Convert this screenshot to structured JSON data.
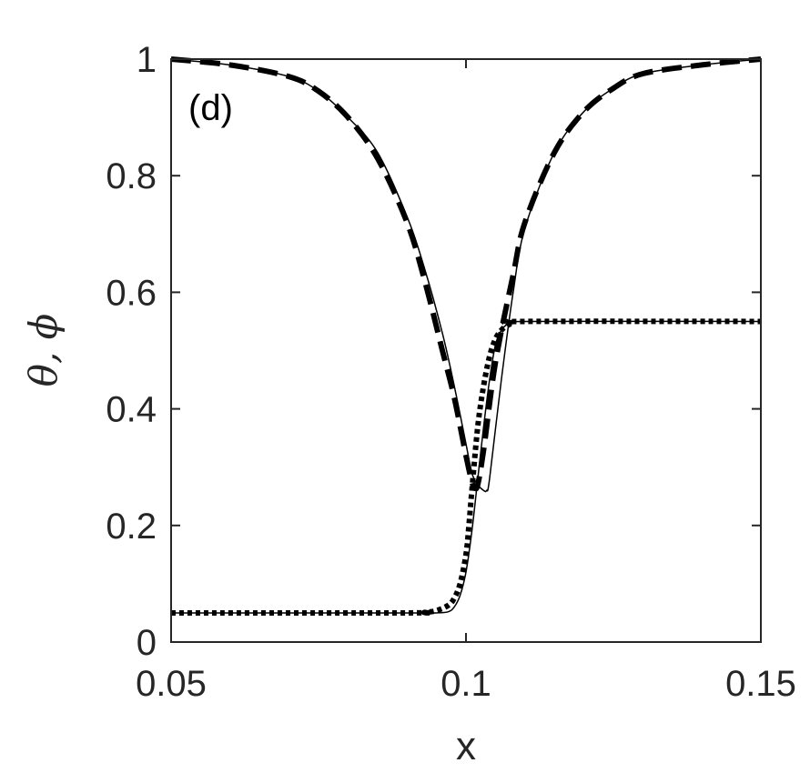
{
  "chart_data": {
    "type": "line",
    "panel_label": "(d)",
    "xlabel": "x",
    "ylabel": "θ, ϕ",
    "xlim": [
      0.05,
      0.15
    ],
    "ylim": [
      0,
      1
    ],
    "xticks": [
      0.05,
      0.1,
      0.15
    ],
    "xtick_labels": [
      "0.05",
      "0.1",
      "0.15"
    ],
    "yticks": [
      0,
      0.2,
      0.4,
      0.6,
      0.8,
      1
    ],
    "ytick_labels": [
      "0",
      "0.2",
      "0.4",
      "0.6",
      "0.8",
      "1"
    ],
    "grid": false,
    "series": [
      {
        "style": "dashed",
        "x": [
          0.05,
          0.06,
          0.07,
          0.075,
          0.08,
          0.085,
          0.09,
          0.093,
          0.096,
          0.098,
          0.1,
          0.101,
          0.1015,
          0.102,
          0.103,
          0.105,
          0.108,
          0.11,
          0.115,
          0.12,
          0.125,
          0.13,
          0.14,
          0.15
        ],
        "y": [
          1.0,
          0.99,
          0.97,
          0.945,
          0.9,
          0.83,
          0.72,
          0.62,
          0.5,
          0.42,
          0.32,
          0.275,
          0.265,
          0.27,
          0.33,
          0.48,
          0.63,
          0.72,
          0.84,
          0.91,
          0.95,
          0.975,
          0.99,
          1.0
        ]
      },
      {
        "style": "solid-thin",
        "x": [
          0.05,
          0.06,
          0.07,
          0.075,
          0.08,
          0.085,
          0.09,
          0.093,
          0.096,
          0.098,
          0.1,
          0.101,
          0.102,
          0.103,
          0.1035,
          0.104,
          0.106,
          0.108,
          0.11,
          0.115,
          0.12,
          0.125,
          0.13,
          0.14,
          0.15
        ],
        "y": [
          1.0,
          0.99,
          0.97,
          0.945,
          0.9,
          0.84,
          0.73,
          0.64,
          0.53,
          0.44,
          0.34,
          0.29,
          0.27,
          0.26,
          0.26,
          0.28,
          0.45,
          0.6,
          0.71,
          0.84,
          0.91,
          0.95,
          0.975,
          0.99,
          1.0
        ]
      },
      {
        "style": "solid-thin",
        "x": [
          0.05,
          0.09,
          0.095,
          0.097,
          0.098,
          0.099,
          0.1,
          0.101,
          0.102,
          0.103,
          0.104,
          0.105,
          0.106,
          0.107,
          0.108,
          0.11,
          0.15
        ],
        "y": [
          0.05,
          0.05,
          0.05,
          0.052,
          0.06,
          0.08,
          0.12,
          0.19,
          0.28,
          0.37,
          0.45,
          0.51,
          0.535,
          0.545,
          0.548,
          0.55,
          0.55
        ]
      },
      {
        "style": "dotted",
        "x": [
          0.05,
          0.09,
          0.093,
          0.095,
          0.097,
          0.098,
          0.099,
          0.1,
          0.1005,
          0.101,
          0.102,
          0.103,
          0.104,
          0.105,
          0.106,
          0.107,
          0.108,
          0.11,
          0.15
        ],
        "y": [
          0.05,
          0.05,
          0.051,
          0.054,
          0.063,
          0.075,
          0.1,
          0.15,
          0.2,
          0.26,
          0.37,
          0.44,
          0.49,
          0.52,
          0.535,
          0.543,
          0.547,
          0.55,
          0.55
        ]
      }
    ]
  }
}
